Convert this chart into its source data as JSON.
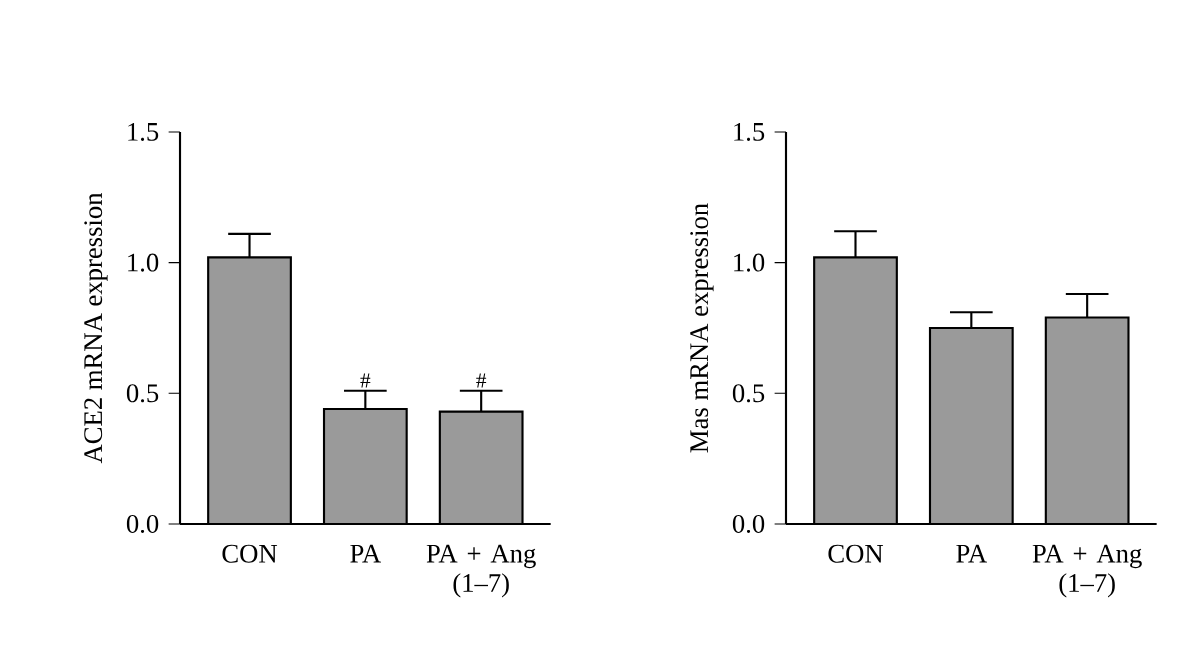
{
  "chart_data": [
    {
      "type": "bar",
      "ylabel": "ACE2 mRNA expression",
      "categories": [
        "CON",
        "PA",
        "PA + Ang (1–7)"
      ],
      "values": [
        1.02,
        0.44,
        0.43
      ],
      "errors": [
        0.09,
        0.07,
        0.08
      ],
      "color": "#9a9a9a",
      "ylim": [
        0,
        1.5
      ],
      "yticks": [
        {
          "value": 0,
          "label": "0.0"
        },
        {
          "value": 0.5,
          "label": "0.5"
        },
        {
          "value": 1,
          "label": "1.0"
        },
        {
          "value": 1.5,
          "label": "1.5"
        }
      ],
      "annotations": [
        {
          "text": "#",
          "x": "PA",
          "y": 0.51
        },
        {
          "text": "#",
          "x": "PA + Ang (1–7)",
          "y": 0.51
        }
      ]
    },
    {
      "type": "bar",
      "ylabel": "Mas mRNA expression",
      "categories": [
        "CON",
        "PA",
        "PA + Ang (1–7)"
      ],
      "values": [
        1.02,
        0.75,
        0.79
      ],
      "errors": [
        0.1,
        0.06,
        0.09
      ],
      "color": "#9a9a9a",
      "ylim": [
        0,
        1.5
      ],
      "yticks": [
        {
          "value": 0,
          "label": "0.0"
        },
        {
          "value": 0.5,
          "label": "0.5"
        },
        {
          "value": 1,
          "label": "1.0"
        },
        {
          "value": 1.5,
          "label": "1.5"
        }
      ]
    }
  ]
}
